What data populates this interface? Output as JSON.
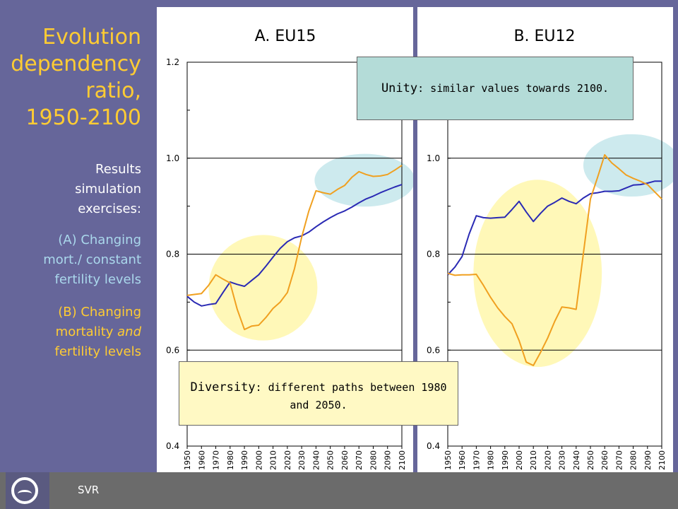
{
  "sidebar": {
    "title": [
      "Evolution",
      "dependency",
      "ratio,",
      "1950-2100"
    ],
    "results": [
      "Results",
      "simulation",
      "exercises:"
    ],
    "note_a": [
      "(A) Changing",
      "mort./ constant",
      "fertility levels"
    ],
    "note_b_line1": "(B) Changing",
    "note_b_line2_prefix": "mortality ",
    "note_b_line2_italic": "and",
    "note_b_line3": "fertility levels"
  },
  "footer": {
    "label": "SVR"
  },
  "callouts": {
    "unity": {
      "key": "Unity",
      "text": ": similar values towards 2100."
    },
    "diversity": {
      "key": "Diversity",
      "text": ": different paths between 1980 and 2050."
    }
  },
  "colors": {
    "background": "#66669a",
    "title": "#ffcc33",
    "note_a": "#aad8ec",
    "blue_series": "#2a2ab4",
    "orange_series": "#f0a020",
    "yellow_highlight": "#fff8b8",
    "blue_highlight": "#cdeaee"
  },
  "chart_data": [
    {
      "type": "line",
      "title": "A.  EU15",
      "ylim": [
        0.4,
        1.2
      ],
      "yticks": [
        0.4,
        0.6,
        0.8,
        1.0,
        1.2
      ],
      "ytick_labels": [
        "0.4",
        "0.6",
        "0.8",
        "1.0",
        "1.2"
      ],
      "x": [
        1950,
        1960,
        1970,
        1980,
        1990,
        2000,
        2010,
        2020,
        2030,
        2040,
        2050,
        2060,
        2070,
        2080,
        2090,
        2100
      ],
      "xtick_labels": [
        "1950",
        "1960",
        "1970",
        "1980",
        "1990",
        "2000",
        "2010",
        "2020",
        "2030",
        "2040",
        "2050",
        "2060",
        "2070",
        "2080",
        "2090",
        "2100"
      ],
      "grid": true,
      "series": [
        {
          "color": "#2a2ab4",
          "x": [
            1950,
            1955,
            1960,
            1965,
            1970,
            1975,
            1980,
            1985,
            1990,
            1995,
            2000,
            2005,
            2010,
            2015,
            2020,
            2025,
            2030,
            2035,
            2040,
            2045,
            2050,
            2055,
            2060,
            2065,
            2070,
            2075,
            2080,
            2085,
            2090,
            2095,
            2100
          ],
          "y": [
            0.712,
            0.7,
            0.692,
            0.695,
            0.697,
            0.72,
            0.742,
            0.737,
            0.733,
            0.745,
            0.757,
            0.775,
            0.794,
            0.812,
            0.826,
            0.834,
            0.838,
            0.846,
            0.857,
            0.867,
            0.876,
            0.884,
            0.89,
            0.898,
            0.907,
            0.915,
            0.921,
            0.928,
            0.934,
            0.94,
            0.945
          ]
        },
        {
          "color": "#f0a020",
          "x": [
            1950,
            1955,
            1960,
            1965,
            1970,
            1975,
            1980,
            1985,
            1990,
            1995,
            2000,
            2005,
            2010,
            2015,
            2020,
            2025,
            2030,
            2035,
            2040,
            2045,
            2050,
            2055,
            2060,
            2065,
            2070,
            2075,
            2080,
            2085,
            2090,
            2095,
            2100
          ],
          "y": [
            0.714,
            0.716,
            0.718,
            0.735,
            0.757,
            0.748,
            0.74,
            0.685,
            0.643,
            0.65,
            0.652,
            0.668,
            0.687,
            0.7,
            0.72,
            0.77,
            0.835,
            0.89,
            0.932,
            0.928,
            0.925,
            0.935,
            0.943,
            0.96,
            0.972,
            0.966,
            0.962,
            0.963,
            0.966,
            0.975,
            0.985
          ]
        }
      ],
      "highlights": [
        {
          "color": "#fff8b8",
          "cx": 2003,
          "cy": 0.73,
          "rx": 38,
          "ry": 0.11
        },
        {
          "color": "#cdeaee",
          "cx": 2074,
          "cy": 0.954,
          "rx": 35,
          "ry": 0.055
        }
      ]
    },
    {
      "type": "line",
      "title": "B.  EU12",
      "ylim": [
        0.4,
        1.2
      ],
      "yticks": [
        0.4,
        0.6,
        0.8,
        1.0
      ],
      "ytick_labels": [
        "0.4",
        "0.6",
        "0.8",
        "1.0"
      ],
      "x": [
        1950,
        1960,
        1970,
        1980,
        1990,
        2000,
        2010,
        2020,
        2030,
        2040,
        2050,
        2060,
        2070,
        2080,
        2090,
        2100
      ],
      "xtick_labels": [
        "1950",
        "1960",
        "1970",
        "1980",
        "1990",
        "2000",
        "2010",
        "2020",
        "2030",
        "2040",
        "2050",
        "2060",
        "2070",
        "2080",
        "2090",
        "2100"
      ],
      "grid": true,
      "series": [
        {
          "color": "#2a2ab4",
          "x": [
            1950,
            1955,
            1960,
            1965,
            1970,
            1975,
            1980,
            1985,
            1990,
            1995,
            2000,
            2005,
            2010,
            2015,
            2020,
            2025,
            2030,
            2035,
            2040,
            2045,
            2050,
            2055,
            2060,
            2065,
            2070,
            2075,
            2080,
            2085,
            2090,
            2095,
            2100
          ],
          "y": [
            0.757,
            0.773,
            0.795,
            0.842,
            0.88,
            0.876,
            0.875,
            0.876,
            0.877,
            0.893,
            0.91,
            0.888,
            0.868,
            0.885,
            0.9,
            0.908,
            0.917,
            0.91,
            0.905,
            0.917,
            0.926,
            0.928,
            0.931,
            0.931,
            0.932,
            0.938,
            0.944,
            0.945,
            0.948,
            0.952,
            0.952
          ]
        },
        {
          "color": "#f0a020",
          "x": [
            1950,
            1955,
            1960,
            1965,
            1970,
            1975,
            1980,
            1985,
            1990,
            1995,
            2000,
            2005,
            2010,
            2015,
            2020,
            2025,
            2030,
            2035,
            2040,
            2045,
            2050,
            2055,
            2060,
            2065,
            2070,
            2075,
            2080,
            2085,
            2090,
            2095,
            2100
          ],
          "y": [
            0.76,
            0.756,
            0.757,
            0.757,
            0.758,
            0.735,
            0.71,
            0.688,
            0.67,
            0.655,
            0.62,
            0.575,
            0.568,
            0.595,
            0.625,
            0.66,
            0.69,
            0.688,
            0.685,
            0.8,
            0.915,
            0.96,
            1.007,
            0.99,
            0.978,
            0.965,
            0.958,
            0.952,
            0.945,
            0.93,
            0.915
          ]
        }
      ],
      "highlights": [
        {
          "color": "#fff8b8",
          "cx": 2013,
          "cy": 0.76,
          "rx": 45,
          "ry": 0.195
        },
        {
          "color": "#cdeaee",
          "cx": 2079,
          "cy": 0.985,
          "rx": 34,
          "ry": 0.065
        }
      ]
    }
  ]
}
